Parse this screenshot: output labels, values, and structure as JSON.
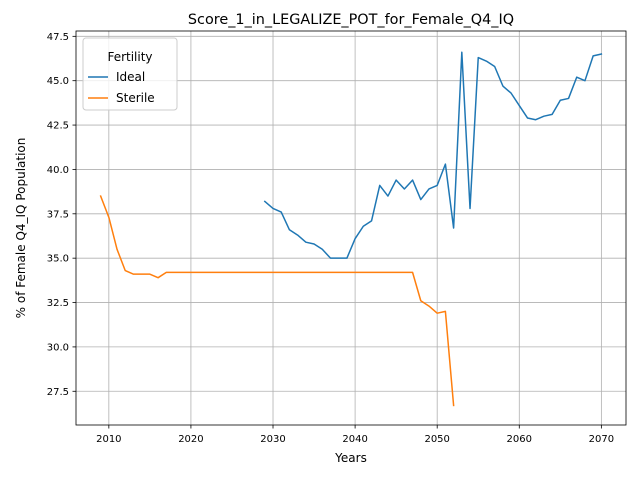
{
  "chart_data": {
    "type": "line",
    "title": "Score_1_in_LEGALIZE_POT_for_Female_Q4_IQ",
    "xlabel": "Years",
    "ylabel": "% of Female Q4_IQ Population",
    "xlim": [
      2006,
      2073
    ],
    "ylim": [
      25.6,
      47.8
    ],
    "xticks": [
      2010,
      2020,
      2030,
      2040,
      2050,
      2060,
      2070
    ],
    "xtick_labels": [
      "2010",
      "2020",
      "2030",
      "2040",
      "2050",
      "2060",
      "2070"
    ],
    "yticks": [
      27.5,
      30.0,
      32.5,
      35.0,
      37.5,
      40.0,
      42.5,
      45.0,
      47.5
    ],
    "ytick_labels": [
      "27.5",
      "30.0",
      "32.5",
      "35.0",
      "37.5",
      "40.0",
      "42.5",
      "45.0",
      "47.5"
    ],
    "grid": true,
    "legend": {
      "title": "Fertility",
      "placement": "top-left"
    },
    "series": [
      {
        "name": "Ideal",
        "color": "#1f77b4",
        "x": [
          2029,
          2030,
          2031,
          2032,
          2033,
          2034,
          2035,
          2036,
          2037,
          2038,
          2039,
          2040,
          2041,
          2042,
          2043,
          2044,
          2045,
          2046,
          2047,
          2048,
          2049,
          2050,
          2051,
          2052,
          2053,
          2054,
          2055,
          2056,
          2057,
          2058,
          2059,
          2060,
          2061,
          2062,
          2063,
          2064,
          2065,
          2066,
          2067,
          2068,
          2069,
          2070
        ],
        "y": [
          38.2,
          37.8,
          37.6,
          36.6,
          36.3,
          35.9,
          35.8,
          35.5,
          35.0,
          35.0,
          35.0,
          36.1,
          36.8,
          37.1,
          39.1,
          38.5,
          39.4,
          38.9,
          39.4,
          38.3,
          38.9,
          39.1,
          40.3,
          36.7,
          46.6,
          37.8,
          46.3,
          46.1,
          45.8,
          44.7,
          44.3,
          43.6,
          42.9,
          42.8,
          43.0,
          43.1,
          43.9,
          44.0,
          45.2,
          45.0,
          46.4,
          46.5
        ]
      },
      {
        "name": "Sterile",
        "color": "#ff7f0e",
        "x": [
          2009,
          2010,
          2011,
          2012,
          2013,
          2014,
          2015,
          2016,
          2017,
          2018,
          2019,
          2020,
          2021,
          2022,
          2023,
          2024,
          2025,
          2026,
          2027,
          2028,
          2029,
          2030,
          2031,
          2032,
          2033,
          2034,
          2035,
          2036,
          2037,
          2038,
          2039,
          2040,
          2041,
          2042,
          2043,
          2044,
          2045,
          2046,
          2047,
          2048,
          2049,
          2050,
          2051,
          2052
        ],
        "y": [
          38.5,
          37.3,
          35.5,
          34.3,
          34.1,
          34.1,
          34.1,
          33.9,
          34.2,
          34.2,
          34.2,
          34.2,
          34.2,
          34.2,
          34.2,
          34.2,
          34.2,
          34.2,
          34.2,
          34.2,
          34.2,
          34.2,
          34.2,
          34.2,
          34.2,
          34.2,
          34.2,
          34.2,
          34.2,
          34.2,
          34.2,
          34.2,
          34.2,
          34.2,
          34.2,
          34.2,
          34.2,
          34.2,
          34.2,
          32.6,
          32.3,
          31.9,
          32.0,
          26.7
        ]
      }
    ]
  }
}
